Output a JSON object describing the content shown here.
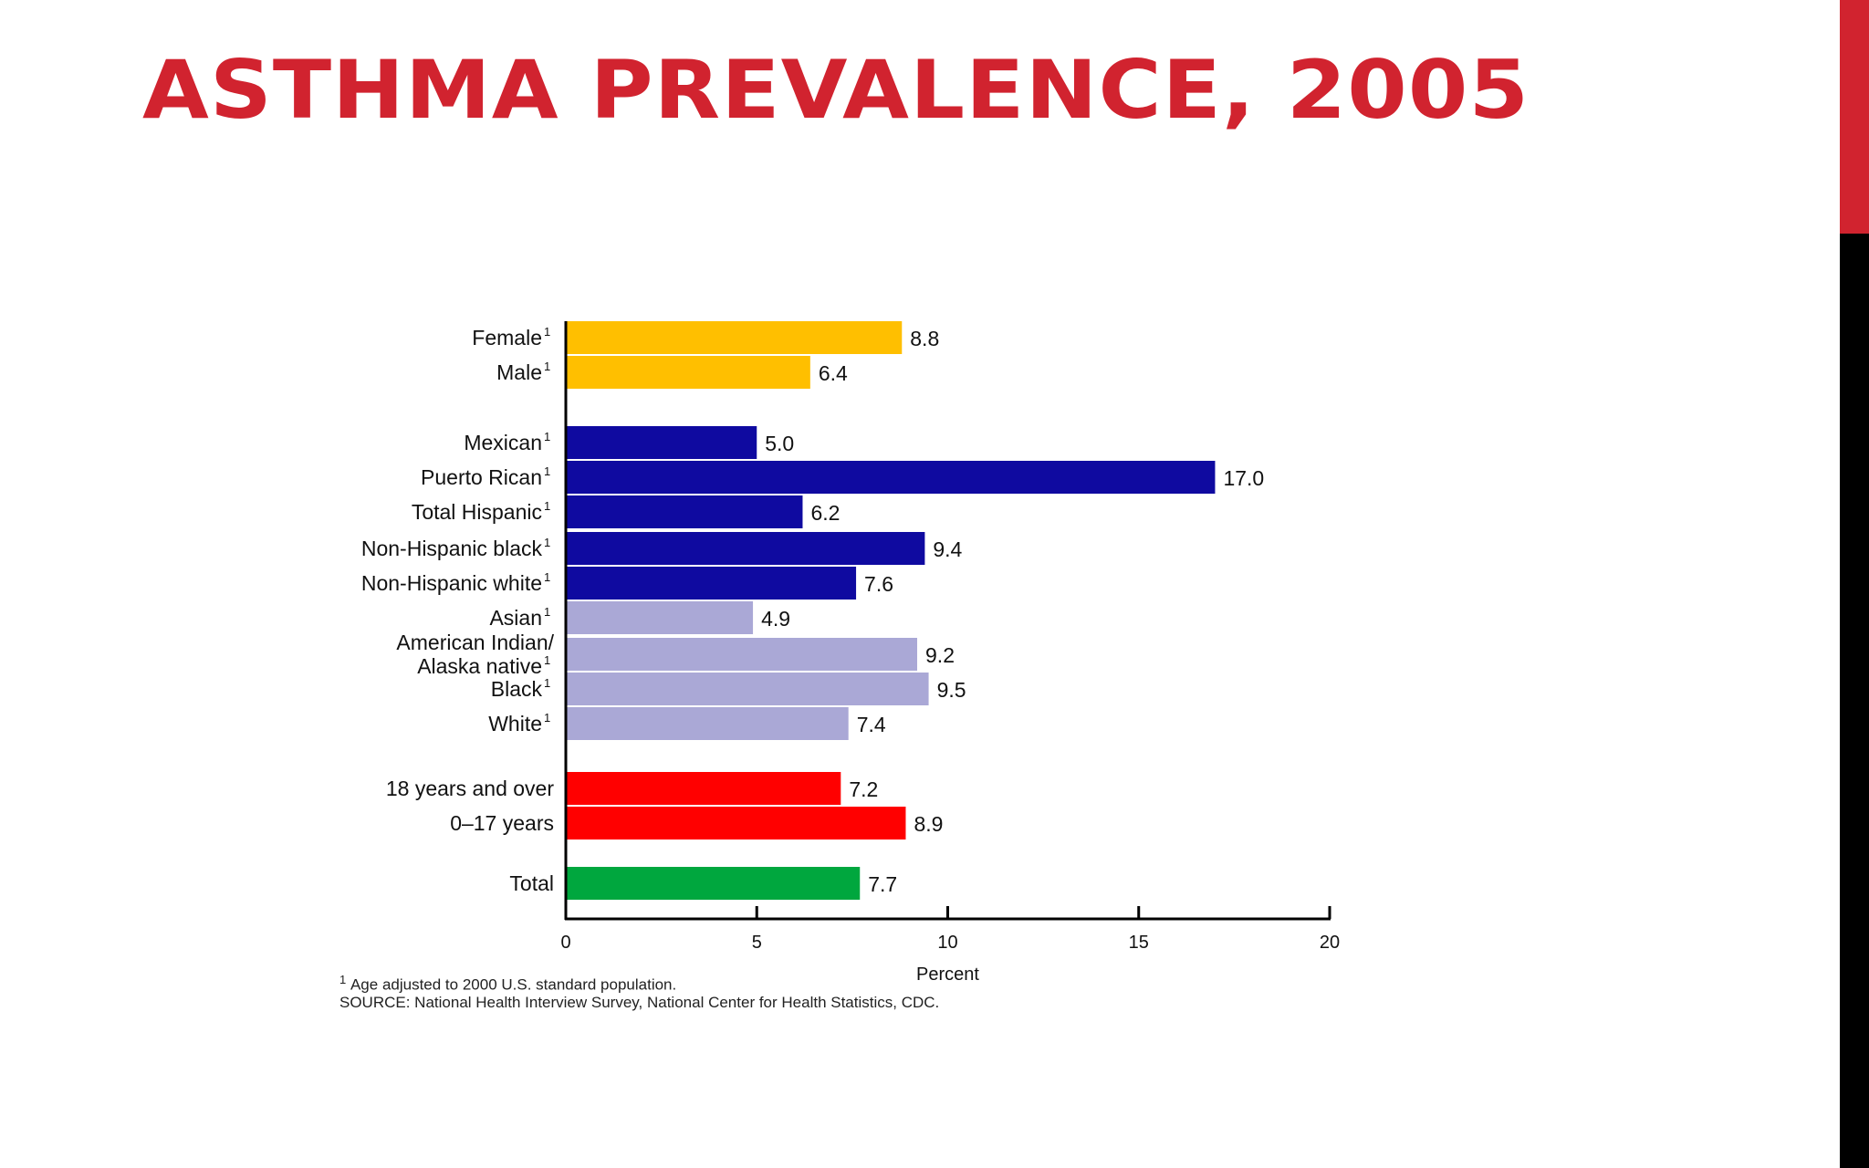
{
  "slide": {
    "title": "ASTHMA PREVALENCE, 2005",
    "colors": {
      "title": "#d1232f",
      "accent_top": "#d1232f",
      "accent_bottom": "#000000"
    }
  },
  "chart_data": {
    "type": "bar",
    "orientation": "horizontal",
    "xlabel": "Percent",
    "xlim": [
      0,
      20
    ],
    "xticks": [
      0,
      5,
      10,
      15,
      20
    ],
    "grid": false,
    "legend": "none",
    "bars": [
      {
        "label": "Female",
        "sup": "1",
        "value": 8.8,
        "value_label": "8.8",
        "color": "#ffbf00",
        "group": "sex"
      },
      {
        "label": "Male",
        "sup": "1",
        "value": 6.4,
        "value_label": "6.4",
        "color": "#ffbf00",
        "group": "sex"
      },
      {
        "label": "Mexican",
        "sup": "1",
        "value": 5.0,
        "value_label": "5.0",
        "color": "#0f0aa0",
        "group": "hispanic"
      },
      {
        "label": "Puerto Rican",
        "sup": "1",
        "value": 17.0,
        "value_label": "17.0",
        "color": "#0f0aa0",
        "group": "hispanic"
      },
      {
        "label": "Total Hispanic",
        "sup": "1",
        "value": 6.2,
        "value_label": "6.2",
        "color": "#0f0aa0",
        "group": "hispanic"
      },
      {
        "label": "Non-Hispanic black",
        "sup": "1",
        "value": 9.4,
        "value_label": "9.4",
        "color": "#0f0aa0",
        "group": "hispanic"
      },
      {
        "label": "Non-Hispanic white",
        "sup": "1",
        "value": 7.6,
        "value_label": "7.6",
        "color": "#0f0aa0",
        "group": "hispanic"
      },
      {
        "label": "Asian",
        "sup": "1",
        "value": 4.9,
        "value_label": "4.9",
        "color": "#aaa8d6",
        "group": "race"
      },
      {
        "label_lines": [
          "American Indian/",
          "Alaska native"
        ],
        "sup": "1",
        "value": 9.2,
        "value_label": "9.2",
        "color": "#aaa8d6",
        "group": "race"
      },
      {
        "label": "Black",
        "sup": "1",
        "value": 9.5,
        "value_label": "9.5",
        "color": "#aaa8d6",
        "group": "race"
      },
      {
        "label": "White",
        "sup": "1",
        "value": 7.4,
        "value_label": "7.4",
        "color": "#aaa8d6",
        "group": "race"
      },
      {
        "label": "18 years and over",
        "value": 7.2,
        "value_label": "7.2",
        "color": "#ff0000",
        "group": "age"
      },
      {
        "label": "0–17 years",
        "value": 8.9,
        "value_label": "8.9",
        "color": "#ff0000",
        "group": "age"
      },
      {
        "label": "Total",
        "value": 7.7,
        "value_label": "7.7",
        "color": "#00a73e",
        "group": "total"
      }
    ]
  },
  "footnotes": {
    "marker": "1",
    "line1": "Age adjusted to 2000 U.S. standard population.",
    "line2": "SOURCE: National Health Interview Survey, National Center for Health Statistics, CDC."
  }
}
